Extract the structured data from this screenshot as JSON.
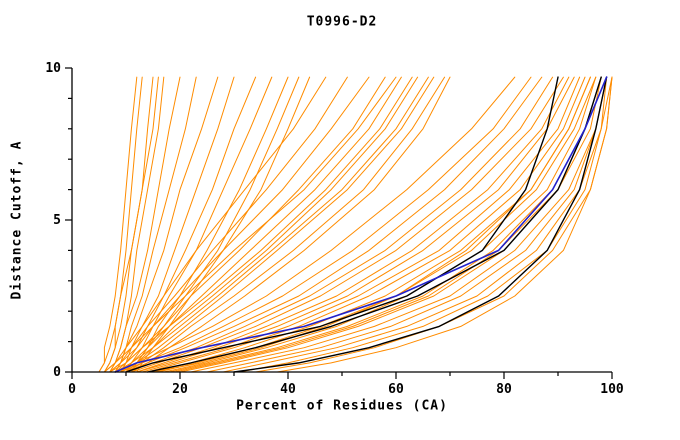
{
  "title": "T0996-D2",
  "chart_data": {
    "type": "line",
    "title": "T0996-D2",
    "xlabel": "Percent of Residues (CA)",
    "ylabel": "Distance Cutoff, A",
    "xlim": [
      0,
      100
    ],
    "ylim": [
      0,
      10
    ],
    "x_ticks": [
      0,
      20,
      40,
      60,
      80,
      100
    ],
    "x_minor_tick_interval": 10,
    "y_ticks": [
      0,
      5,
      10
    ],
    "y_minor_tick_interval": 1,
    "grid": false,
    "legend": "none",
    "colors": {
      "model": "#ff8c00",
      "highlight": "#2222cc",
      "reference": "#000000"
    },
    "y_samples": [
      0,
      0.3,
      0.8,
      1.5,
      2.5,
      4,
      6,
      8,
      9.7
    ],
    "series": [
      {
        "name": "black-reference-upper",
        "color": "#000000",
        "width": 1.4,
        "x": [
          10,
          15,
          28,
          46,
          62,
          76,
          84,
          88,
          90
        ]
      },
      {
        "name": "black-reference-mid",
        "color": "#000000",
        "width": 1.4,
        "x": [
          14,
          22,
          34,
          48,
          64,
          80,
          90,
          95,
          98
        ]
      },
      {
        "name": "black-reference-lower",
        "color": "#000000",
        "width": 1.4,
        "x": [
          30,
          42,
          55,
          68,
          79,
          88,
          94,
          97,
          99
        ]
      },
      {
        "name": "blue-highlight-model",
        "color": "#2222cc",
        "width": 1.6,
        "x": [
          8,
          12,
          24,
          43,
          60,
          79,
          89,
          95,
          99
        ]
      }
    ],
    "background_series": {
      "name": "orange-model-curves",
      "color": "#ff8c00",
      "width": 1,
      "curves": [
        [
          5,
          6,
          6,
          7,
          8,
          9,
          10,
          11,
          12
        ],
        [
          6,
          7,
          8,
          8,
          9,
          10,
          11,
          12,
          13
        ],
        [
          6,
          7,
          8,
          9,
          10,
          11,
          13,
          14,
          15
        ],
        [
          7,
          8,
          9,
          10,
          11,
          12,
          14,
          16,
          17
        ],
        [
          7,
          8,
          9,
          10,
          12,
          14,
          16,
          18,
          20
        ],
        [
          8,
          9,
          10,
          11,
          13,
          15,
          18,
          21,
          23
        ],
        [
          8,
          9,
          10,
          12,
          14,
          17,
          20,
          24,
          27
        ],
        [
          9,
          10,
          11,
          13,
          16,
          19,
          23,
          27,
          30
        ],
        [
          9,
          10,
          12,
          14,
          17,
          21,
          26,
          30,
          34
        ],
        [
          10,
          11,
          13,
          15,
          18,
          23,
          28,
          33,
          37
        ],
        [
          10,
          12,
          14,
          16,
          20,
          25,
          31,
          36,
          40
        ],
        [
          11,
          12,
          14,
          17,
          21,
          27,
          33,
          38,
          42
        ],
        [
          5,
          6,
          7,
          8,
          9,
          11,
          13,
          15,
          16
        ],
        [
          12,
          13,
          15,
          18,
          22,
          28,
          35,
          40,
          44
        ],
        [
          6,
          8,
          10,
          13,
          17,
          23,
          32,
          41,
          47
        ],
        [
          7,
          9,
          11,
          14,
          19,
          26,
          36,
          45,
          51
        ],
        [
          7,
          9,
          12,
          15,
          20,
          28,
          39,
          48,
          55
        ],
        [
          8,
          10,
          13,
          17,
          22,
          31,
          42,
          52,
          58
        ],
        [
          8,
          11,
          14,
          18,
          24,
          33,
          45,
          55,
          61
        ],
        [
          9,
          11,
          15,
          19,
          26,
          36,
          48,
          58,
          64
        ],
        [
          9,
          12,
          16,
          21,
          28,
          38,
          51,
          61,
          67
        ],
        [
          10,
          13,
          17,
          22,
          30,
          41,
          54,
          63,
          69
        ],
        [
          6,
          8,
          11,
          15,
          21,
          30,
          43,
          53,
          60
        ],
        [
          11,
          14,
          18,
          24,
          32,
          43,
          56,
          65,
          70
        ],
        [
          7,
          10,
          13,
          18,
          25,
          35,
          47,
          57,
          63
        ],
        [
          10,
          12,
          15,
          20,
          27,
          37,
          50,
          60,
          66
        ],
        [
          8,
          12,
          18,
          26,
          36,
          48,
          62,
          74,
          82
        ],
        [
          9,
          13,
          20,
          28,
          39,
          52,
          66,
          78,
          85
        ],
        [
          10,
          14,
          21,
          30,
          42,
          55,
          69,
          80,
          87
        ],
        [
          10,
          15,
          23,
          32,
          44,
          58,
          72,
          83,
          89
        ],
        [
          11,
          16,
          24,
          34,
          46,
          60,
          74,
          85,
          91
        ],
        [
          12,
          17,
          26,
          36,
          49,
          63,
          77,
          87,
          92
        ],
        [
          12,
          18,
          27,
          38,
          51,
          65,
          79,
          88,
          93
        ],
        [
          13,
          19,
          29,
          40,
          53,
          68,
          81,
          90,
          94
        ],
        [
          14,
          20,
          30,
          42,
          55,
          70,
          83,
          91,
          95
        ],
        [
          15,
          22,
          32,
          44,
          58,
          72,
          85,
          92,
          96
        ],
        [
          16,
          23,
          34,
          46,
          60,
          74,
          86,
          93,
          97
        ],
        [
          17,
          25,
          36,
          49,
          62,
          76,
          88,
          94,
          97
        ],
        [
          18,
          26,
          38,
          51,
          65,
          78,
          89,
          95,
          98
        ],
        [
          20,
          28,
          40,
          53,
          67,
          80,
          90,
          96,
          98
        ],
        [
          22,
          30,
          43,
          56,
          70,
          82,
          92,
          97,
          99
        ],
        [
          25,
          33,
          46,
          59,
          72,
          84,
          93,
          97,
          99
        ],
        [
          28,
          36,
          49,
          62,
          75,
          86,
          94,
          98,
          99
        ],
        [
          31,
          40,
          52,
          65,
          77,
          88,
          95,
          98,
          100
        ],
        [
          34,
          44,
          56,
          68,
          80,
          89,
          96,
          99,
          100
        ],
        [
          38,
          48,
          60,
          72,
          82,
          91,
          96,
          99,
          100
        ],
        [
          15,
          24,
          35,
          47,
          60,
          73,
          85,
          92,
          96
        ],
        [
          19,
          27,
          39,
          52,
          66,
          79,
          90,
          95,
          98
        ]
      ]
    }
  }
}
